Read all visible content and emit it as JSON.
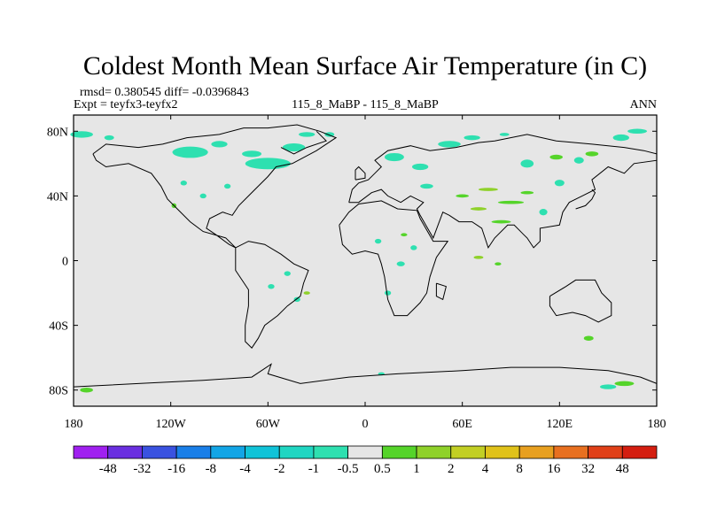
{
  "chart_data": {
    "type": "heatmap",
    "title": "Coldest Month Mean Surface Air Temperature (in C)",
    "stats_text": "rmsd= 0.380545 diff= -0.0396843",
    "experiment_text": "Expt = teyfx3-teyfx2",
    "subtitle": "115_8_MaBP - 115_8_MaBP",
    "season": "ANN",
    "x_range": [
      -180,
      180
    ],
    "y_range": [
      -90,
      90
    ],
    "x_ticks": [
      {
        "value": -180,
        "label": "180"
      },
      {
        "value": -120,
        "label": "120W"
      },
      {
        "value": -60,
        "label": "60W"
      },
      {
        "value": 0,
        "label": "0"
      },
      {
        "value": 60,
        "label": "60E"
      },
      {
        "value": 120,
        "label": "120E"
      },
      {
        "value": 180,
        "label": "180"
      }
    ],
    "y_ticks": [
      {
        "value": 80,
        "label": "80N"
      },
      {
        "value": 40,
        "label": "40N"
      },
      {
        "value": 0,
        "label": "0"
      },
      {
        "value": -40,
        "label": "40S"
      },
      {
        "value": -80,
        "label": "80S"
      }
    ],
    "colorbar": {
      "labels": [
        "-48",
        "-32",
        "-16",
        "-8",
        "-4",
        "-2",
        "-1",
        "-0.5",
        "0.5",
        "1",
        "2",
        "4",
        "8",
        "16",
        "32",
        "48"
      ],
      "colors": [
        "#a020f0",
        "#6a2fe0",
        "#3a52e0",
        "#1a7fe8",
        "#12a5e6",
        "#10c3d8",
        "#20d6c2",
        "#2ee0b0",
        "#e6e6e6",
        "#55d42a",
        "#8fd12a",
        "#c2cf24",
        "#e0c21a",
        "#e8a020",
        "#e87020",
        "#e04018",
        "#d41e10"
      ]
    },
    "background_color": "#e6e6e6",
    "anomaly_patches": [
      {
        "lon": -175,
        "lat": 78,
        "w": 14,
        "h": 4,
        "bin": 7
      },
      {
        "lon": -158,
        "lat": 76,
        "w": 6,
        "h": 3,
        "bin": 7
      },
      {
        "lon": -108,
        "lat": 67,
        "w": 22,
        "h": 7,
        "bin": 7
      },
      {
        "lon": -90,
        "lat": 72,
        "w": 10,
        "h": 4,
        "bin": 7
      },
      {
        "lon": -60,
        "lat": 60,
        "w": 28,
        "h": 7,
        "bin": 7
      },
      {
        "lon": -70,
        "lat": 66,
        "w": 12,
        "h": 4,
        "bin": 7
      },
      {
        "lon": -44,
        "lat": 70,
        "w": 14,
        "h": 5,
        "bin": 7
      },
      {
        "lon": -36,
        "lat": 78,
        "w": 10,
        "h": 3,
        "bin": 7
      },
      {
        "lon": -112,
        "lat": 48,
        "w": 4,
        "h": 3,
        "bin": 7
      },
      {
        "lon": -100,
        "lat": 40,
        "w": 4,
        "h": 3,
        "bin": 7
      },
      {
        "lon": -85,
        "lat": 46,
        "w": 4,
        "h": 3,
        "bin": 7
      },
      {
        "lon": -22,
        "lat": 78,
        "w": 6,
        "h": 3,
        "bin": 7
      },
      {
        "lon": 18,
        "lat": 64,
        "w": 12,
        "h": 5,
        "bin": 7
      },
      {
        "lon": 34,
        "lat": 58,
        "w": 10,
        "h": 4,
        "bin": 7
      },
      {
        "lon": 52,
        "lat": 72,
        "w": 14,
        "h": 4,
        "bin": 7
      },
      {
        "lon": 66,
        "lat": 76,
        "w": 10,
        "h": 3,
        "bin": 7
      },
      {
        "lon": 38,
        "lat": 46,
        "w": 8,
        "h": 3,
        "bin": 7
      },
      {
        "lon": 100,
        "lat": 60,
        "w": 8,
        "h": 5,
        "bin": 7
      },
      {
        "lon": 120,
        "lat": 48,
        "w": 6,
        "h": 4,
        "bin": 7
      },
      {
        "lon": 132,
        "lat": 62,
        "w": 6,
        "h": 4,
        "bin": 7
      },
      {
        "lon": 110,
        "lat": 30,
        "w": 5,
        "h": 4,
        "bin": 7
      },
      {
        "lon": 158,
        "lat": 76,
        "w": 10,
        "h": 4,
        "bin": 7
      },
      {
        "lon": 168,
        "lat": 80,
        "w": 12,
        "h": 3,
        "bin": 7
      },
      {
        "lon": 86,
        "lat": 78,
        "w": 6,
        "h": 2,
        "bin": 7
      },
      {
        "lon": 8,
        "lat": 12,
        "w": 4,
        "h": 3,
        "bin": 7
      },
      {
        "lon": 22,
        "lat": -2,
        "w": 5,
        "h": 3,
        "bin": 7
      },
      {
        "lon": 14,
        "lat": -20,
        "w": 4,
        "h": 3,
        "bin": 7
      },
      {
        "lon": 30,
        "lat": 8,
        "w": 4,
        "h": 3,
        "bin": 7
      },
      {
        "lon": -48,
        "lat": -8,
        "w": 4,
        "h": 3,
        "bin": 7
      },
      {
        "lon": -42,
        "lat": -24,
        "w": 4,
        "h": 3,
        "bin": 7
      },
      {
        "lon": -58,
        "lat": -16,
        "w": 4,
        "h": 3,
        "bin": 7
      },
      {
        "lon": 150,
        "lat": -78,
        "w": 10,
        "h": 3,
        "bin": 7
      },
      {
        "lon": 10,
        "lat": -70,
        "w": 4,
        "h": 2,
        "bin": 7
      },
      {
        "lon": -172,
        "lat": -80,
        "w": 8,
        "h": 3,
        "bin": 9
      },
      {
        "lon": 160,
        "lat": -76,
        "w": 12,
        "h": 3,
        "bin": 9
      },
      {
        "lon": 138,
        "lat": -48,
        "w": 6,
        "h": 3,
        "bin": 9
      },
      {
        "lon": 90,
        "lat": 36,
        "w": 16,
        "h": 2,
        "bin": 9
      },
      {
        "lon": 70,
        "lat": 32,
        "w": 10,
        "h": 2,
        "bin": 10
      },
      {
        "lon": 84,
        "lat": 24,
        "w": 12,
        "h": 2,
        "bin": 9
      },
      {
        "lon": 76,
        "lat": 44,
        "w": 12,
        "h": 2,
        "bin": 10
      },
      {
        "lon": 60,
        "lat": 40,
        "w": 8,
        "h": 2,
        "bin": 9
      },
      {
        "lon": 100,
        "lat": 42,
        "w": 8,
        "h": 2,
        "bin": 9
      },
      {
        "lon": 118,
        "lat": 64,
        "w": 8,
        "h": 3,
        "bin": 9
      },
      {
        "lon": 140,
        "lat": 66,
        "w": 8,
        "h": 3,
        "bin": 9
      },
      {
        "lon": 70,
        "lat": 2,
        "w": 6,
        "h": 2,
        "bin": 10
      },
      {
        "lon": 82,
        "lat": -2,
        "w": 4,
        "h": 2,
        "bin": 9
      },
      {
        "lon": 24,
        "lat": 16,
        "w": 4,
        "h": 2,
        "bin": 9
      },
      {
        "lon": -36,
        "lat": -20,
        "w": 4,
        "h": 2,
        "bin": 10
      },
      {
        "lon": -118,
        "lat": 34,
        "w": 3,
        "h": 3,
        "bin": 9
      }
    ]
  }
}
